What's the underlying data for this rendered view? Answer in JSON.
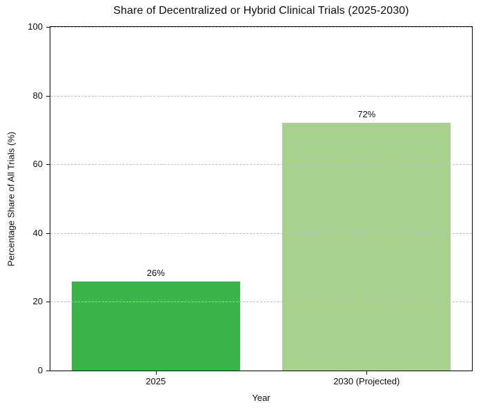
{
  "chart_data": {
    "type": "bar",
    "title": "Share of Decentralized or Hybrid Clinical Trials (2025-2030)",
    "xlabel": "Year",
    "ylabel": "Percentage Share of All Trials (%)",
    "categories": [
      "2025",
      "2030 (Projected)"
    ],
    "values": [
      26,
      72
    ],
    "value_labels": [
      "26%",
      "72%"
    ],
    "bar_colors": [
      "#3ab54a",
      "#a9d18e"
    ],
    "ylim": [
      0,
      100
    ],
    "yticks": [
      0,
      20,
      40,
      60,
      80,
      100
    ],
    "grid": "horizontal dashed, drawn over bars",
    "gridline_color": "#bdbdbd",
    "spine_color": "#000000",
    "background_color": "#ffffff",
    "legend": "none"
  }
}
